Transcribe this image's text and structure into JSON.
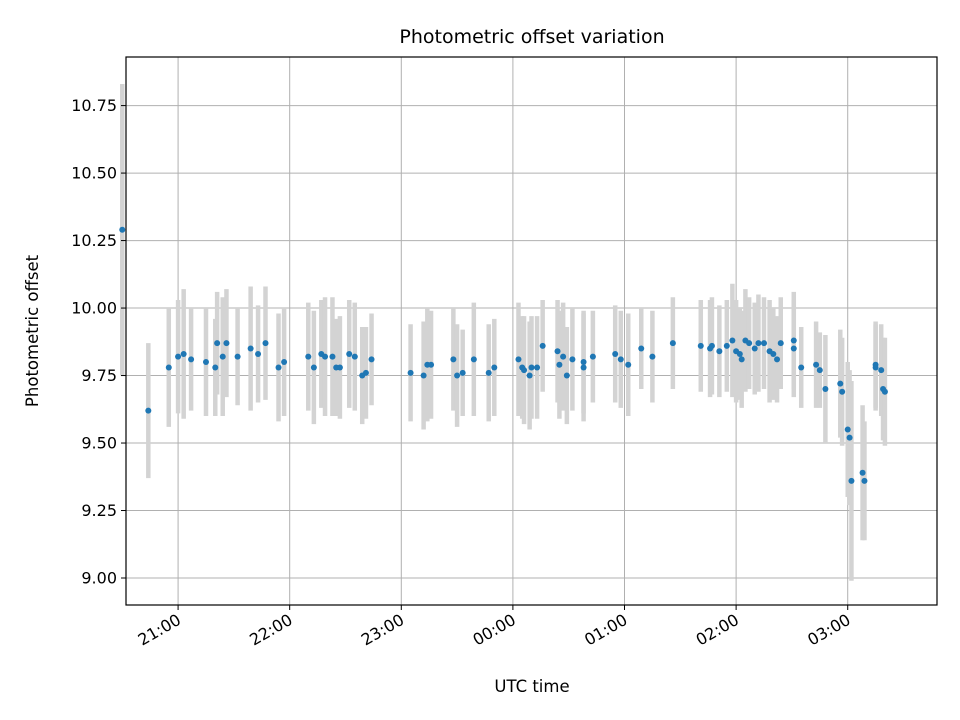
{
  "chart_data": {
    "type": "scatter",
    "title": "Photometric offset variation",
    "xlabel": "UTC time",
    "ylabel": "Photometric offset",
    "grid": true,
    "legend": "none",
    "colors": {
      "points": "#1f77b4",
      "errorbars": "#d3d3d3",
      "grid": "#b0b0b0"
    },
    "xlim": [
      "20:32",
      "03:48"
    ],
    "ylim": [
      8.9,
      10.93
    ],
    "x_ticks": [
      "21:00",
      "22:00",
      "23:00",
      "00:00",
      "01:00",
      "02:00",
      "03:00"
    ],
    "y_ticks": [
      "9.00",
      "9.25",
      "9.50",
      "9.75",
      "10.00",
      "10.25",
      "10.50",
      "10.75"
    ],
    "series": [
      {
        "x": [
          "20:30",
          "20:44",
          "20:55",
          "21:00",
          "21:03",
          "21:07",
          "21:15",
          "21:20",
          "21:21",
          "21:24",
          "21:26",
          "21:32",
          "21:39",
          "21:43",
          "21:47",
          "21:54",
          "21:57",
          "22:10",
          "22:13",
          "22:17",
          "22:19",
          "22:23",
          "22:25",
          "22:27",
          "22:32",
          "22:35",
          "22:39",
          "22:41",
          "22:44",
          "23:05",
          "23:12",
          "23:14",
          "23:16",
          "23:28",
          "23:30",
          "23:33",
          "23:39",
          "23:47",
          "23:50",
          "24:03",
          "24:05",
          "24:06",
          "24:09",
          "24:10",
          "24:13",
          "24:16",
          "24:24",
          "24:25",
          "24:27",
          "24:29",
          "24:32",
          "24:38",
          "24:38",
          "24:43",
          "24:55",
          "24:58",
          "25:02",
          "25:09",
          "25:15",
          "25:26",
          "25:41",
          "25:46",
          "25:47",
          "25:51",
          "25:55",
          "25:58",
          "26:00",
          "26:02",
          "26:03",
          "26:05",
          "26:07",
          "26:10",
          "26:12",
          "26:15",
          "26:18",
          "26:20",
          "26:22",
          "26:24",
          "26:31",
          "26:31",
          "26:35",
          "26:43",
          "26:45",
          "26:48",
          "26:56",
          "26:57",
          "27:00",
          "27:01",
          "27:02",
          "27:08",
          "27:09",
          "27:15",
          "27:15",
          "27:18",
          "27:19",
          "27:20"
        ],
        "y": [
          10.29,
          9.62,
          9.78,
          9.82,
          9.83,
          9.81,
          9.8,
          9.78,
          9.87,
          9.82,
          9.87,
          9.82,
          9.85,
          9.83,
          9.87,
          9.78,
          9.8,
          9.82,
          9.78,
          9.83,
          9.82,
          9.82,
          9.78,
          9.78,
          9.83,
          9.82,
          9.75,
          9.76,
          9.81,
          9.76,
          9.75,
          9.79,
          9.79,
          9.81,
          9.75,
          9.76,
          9.81,
          9.76,
          9.78,
          9.81,
          9.78,
          9.77,
          9.75,
          9.78,
          9.78,
          9.86,
          9.84,
          9.79,
          9.82,
          9.75,
          9.81,
          9.78,
          9.8,
          9.82,
          9.83,
          9.81,
          9.79,
          9.85,
          9.82,
          9.87,
          9.86,
          9.85,
          9.86,
          9.84,
          9.86,
          9.88,
          9.84,
          9.83,
          9.81,
          9.88,
          9.87,
          9.85,
          9.87,
          9.87,
          9.84,
          9.83,
          9.81,
          9.87,
          9.85,
          9.88,
          9.78,
          9.79,
          9.77,
          9.7,
          9.72,
          9.69,
          9.55,
          9.52,
          9.36,
          9.39,
          9.36,
          9.79,
          9.78,
          9.77,
          9.7,
          9.69
        ],
        "err": [
          0.54,
          0.25,
          0.22,
          0.21,
          0.24,
          0.19,
          0.2,
          0.18,
          0.19,
          0.22,
          0.2,
          0.18,
          0.23,
          0.18,
          0.21,
          0.2,
          0.2,
          0.2,
          0.21,
          0.2,
          0.22,
          0.22,
          0.18,
          0.19,
          0.2,
          0.2,
          0.18,
          0.17,
          0.17,
          0.18,
          0.2,
          0.21,
          0.2,
          0.19,
          0.19,
          0.16,
          0.21,
          0.18,
          0.18,
          0.21,
          0.19,
          0.2,
          0.2,
          0.19,
          0.19,
          0.17,
          0.19,
          0.2,
          0.2,
          0.18,
          0.19,
          0.2,
          0.19,
          0.17,
          0.18,
          0.18,
          0.19,
          0.15,
          0.17,
          0.17,
          0.17,
          0.18,
          0.18,
          0.17,
          0.17,
          0.21,
          0.19,
          0.17,
          0.18,
          0.19,
          0.17,
          0.17,
          0.18,
          0.17,
          0.19,
          0.17,
          0.16,
          0.17,
          0.18,
          0.18,
          0.15,
          0.16,
          0.14,
          0.2,
          0.2,
          0.2,
          0.25,
          0.25,
          0.37,
          0.25,
          0.22,
          0.16,
          0.16,
          0.17,
          0.19,
          0.2
        ]
      }
    ]
  }
}
